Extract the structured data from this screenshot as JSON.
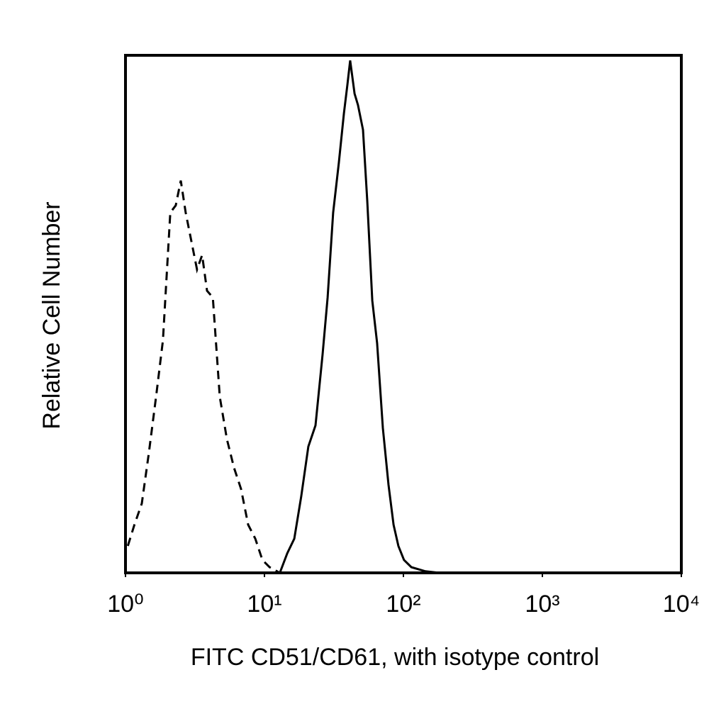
{
  "chart_data": {
    "type": "line",
    "xlabel": "FITC CD51/CD61, with isotype control",
    "ylabel": "Relative Cell Number",
    "xscale": "log",
    "xlim": [
      1,
      10000
    ],
    "ylim": [
      0,
      100
    ],
    "xticks": [
      {
        "value": 1,
        "label": "10⁰"
      },
      {
        "value": 10,
        "label": "10¹"
      },
      {
        "value": 100,
        "label": "10²"
      },
      {
        "value": 1000,
        "label": "10³"
      },
      {
        "value": 10000,
        "label": "10⁴"
      }
    ],
    "series": [
      {
        "color": "#000000",
        "style": "solid",
        "x": [
          12.9,
          14.6,
          16.4,
          18.4,
          20.7,
          23.3,
          26.2,
          28.5,
          31.2,
          34.3,
          37.3,
          39.5,
          41.4,
          44.5,
          47.1,
          51.2,
          54.9,
          59.7,
          64.7,
          71.1,
          78.1,
          84.9,
          92.0,
          101,
          114,
          144,
          182
        ],
        "values": [
          0,
          3.8,
          6.6,
          14.8,
          24.4,
          28.5,
          42.2,
          53.2,
          69.6,
          79.2,
          88.8,
          94.2,
          99.0,
          92.6,
          90.4,
          85.6,
          71.9,
          52.6,
          44.4,
          28.0,
          17.0,
          9.3,
          5.2,
          2.5,
          1.1,
          0.3,
          0
        ]
      },
      {
        "color": "#000000",
        "style": "dashed",
        "x": [
          1.04,
          1.16,
          1.31,
          1.47,
          1.66,
          1.86,
          2.1,
          2.3,
          2.5,
          2.71,
          2.98,
          3.27,
          3.56,
          3.86,
          4.25,
          4.77,
          5.37,
          6.04,
          6.79,
          7.63,
          8.59,
          9.66,
          10.9,
          12.9
        ],
        "values": [
          5.2,
          9.3,
          13.4,
          23.0,
          34.0,
          44.9,
          69.6,
          71.0,
          75.8,
          69.6,
          64.1,
          58.6,
          61.4,
          54.5,
          53.2,
          34.0,
          25.8,
          20.3,
          16.2,
          9.3,
          6.6,
          2.5,
          1.1,
          0
        ]
      }
    ]
  }
}
